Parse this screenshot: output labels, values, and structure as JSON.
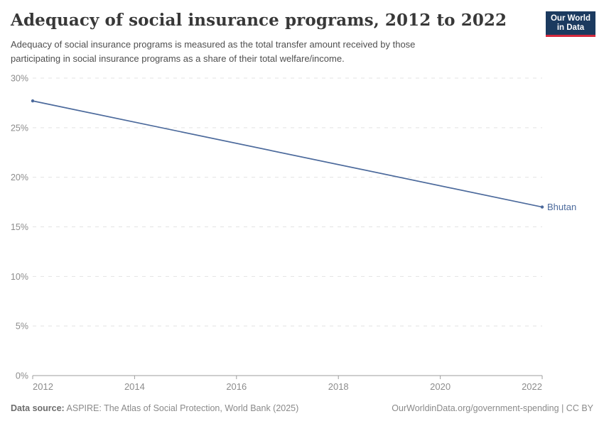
{
  "header": {
    "title": "Adequacy of social insurance programs, 2012 to 2022",
    "subtitle_lines": [
      "Adequacy of social insurance programs is measured as the total transfer amount received by those",
      "participating in social insurance programs as a share of their total welfare/income."
    ],
    "logo": {
      "line1": "Our World",
      "line2": "in Data",
      "bg_color": "#1b3a5f",
      "stripe_color": "#d4293d"
    }
  },
  "chart_data": {
    "type": "line",
    "title": "Adequacy of social insurance programs, 2012 to 2022",
    "xlabel": "",
    "ylabel": "",
    "grid": true,
    "x": {
      "min": 2012,
      "max": 2022,
      "ticks": [
        2012,
        2014,
        2016,
        2018,
        2020,
        2022
      ]
    },
    "y": {
      "min": 0,
      "max": 30,
      "unit": "%",
      "ticks": [
        0,
        5,
        10,
        15,
        20,
        25,
        30
      ]
    },
    "series": [
      {
        "name": "Bhutan",
        "color": "#4c6a9c",
        "points": [
          [
            2012,
            27.7
          ],
          [
            2022,
            17.0
          ]
        ]
      }
    ],
    "colors": {
      "gridline": "#e3e3e3",
      "axis": "#9e9e9e",
      "tick_label": "#8c8c8c"
    }
  },
  "footer": {
    "source_label": "Data source:",
    "source_text": " ASPIRE: The Atlas of Social Protection, World Bank (2025)",
    "url": "OurWorldinData.org/government-spending",
    "license": " | CC BY"
  }
}
